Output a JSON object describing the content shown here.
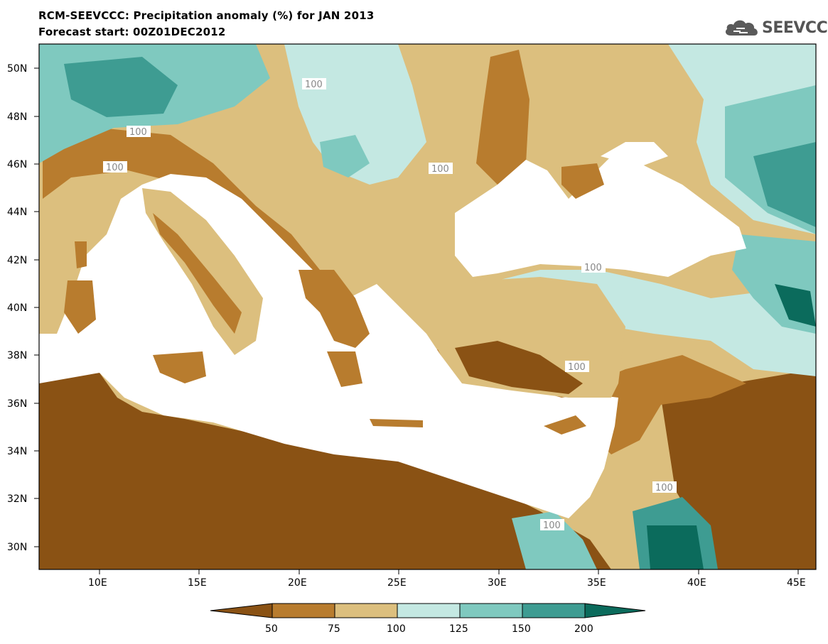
{
  "header": {
    "title_line1": "RCM-SEEVCCC: Precipitation anomaly (%) for JAN 2013",
    "title_line2": "Forecast start: 00Z01DEC2012",
    "logo_text": "SEEVCCC"
  },
  "map": {
    "lat_labels": [
      "50N",
      "48N",
      "46N",
      "44N",
      "42N",
      "40N",
      "38N",
      "36N",
      "34N",
      "32N",
      "30N"
    ],
    "lon_labels": [
      "10E",
      "15E",
      "20E",
      "25E",
      "30E",
      "35E",
      "40E",
      "45E"
    ],
    "contour_label": "100"
  },
  "legend": {
    "labels": [
      "50",
      "75",
      "100",
      "125",
      "150",
      "200"
    ],
    "colors": [
      "#8a5214",
      "#b87c2e",
      "#dcbf7e",
      "#c4e8e2",
      "#7fc9bf",
      "#3e9c92",
      "#0b6b5c"
    ],
    "sea_color": "#ffffff",
    "land_palette_note": ""
  }
}
